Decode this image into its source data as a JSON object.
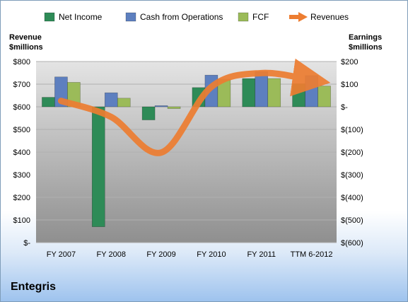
{
  "company": "Entegris",
  "colors": {
    "net_income": "#2e8b57",
    "cash_from_operations": "#5d7fbf",
    "fcf": "#9bbb59",
    "revenues": "#ed7d31",
    "plot_top": "#e4e4e4",
    "plot_bottom": "#8f8f8f"
  },
  "chart_data": {
    "type": "bar",
    "categories": [
      "FY 2007",
      "FY 2008",
      "FY 2009",
      "FY 2010",
      "FY 2011",
      "TTM 6-2012"
    ],
    "left_axis": {
      "title_line1": "Revenue",
      "title_line2": "$millions",
      "ylim": [
        0,
        800
      ],
      "ticks": [
        0,
        100,
        200,
        300,
        400,
        500,
        600,
        700,
        800
      ],
      "tick_labels": [
        "$-",
        "$100",
        "$200",
        "$300",
        "$400",
        "$500",
        "$600",
        "$700",
        "$800"
      ]
    },
    "right_axis": {
      "title_line1": "Earnings",
      "title_line2": "$millions",
      "ylim": [
        -600,
        200
      ],
      "ticks": [
        -600,
        -500,
        -400,
        -300,
        -200,
        -100,
        0,
        100,
        200
      ],
      "tick_labels": [
        "$(600)",
        "$(500)",
        "$(400)",
        "$(300)",
        "$(200)",
        "$(100)",
        "$-",
        "$100",
        "$200"
      ]
    },
    "series": [
      {
        "name": "Net Income",
        "axis": "right",
        "values": [
          42,
          -530,
          -58,
          85,
          125,
          102
        ]
      },
      {
        "name": "Cash from Operations",
        "axis": "right",
        "values": [
          132,
          62,
          5,
          140,
          155,
          138
        ]
      },
      {
        "name": "FCF",
        "axis": "right",
        "values": [
          108,
          38,
          -8,
          122,
          125,
          92
        ]
      },
      {
        "name": "Revenues",
        "axis": "left",
        "type": "line",
        "values": [
          626,
          555,
          398,
          688,
          749,
          718
        ]
      }
    ],
    "legend_position": "top",
    "grid": true
  }
}
